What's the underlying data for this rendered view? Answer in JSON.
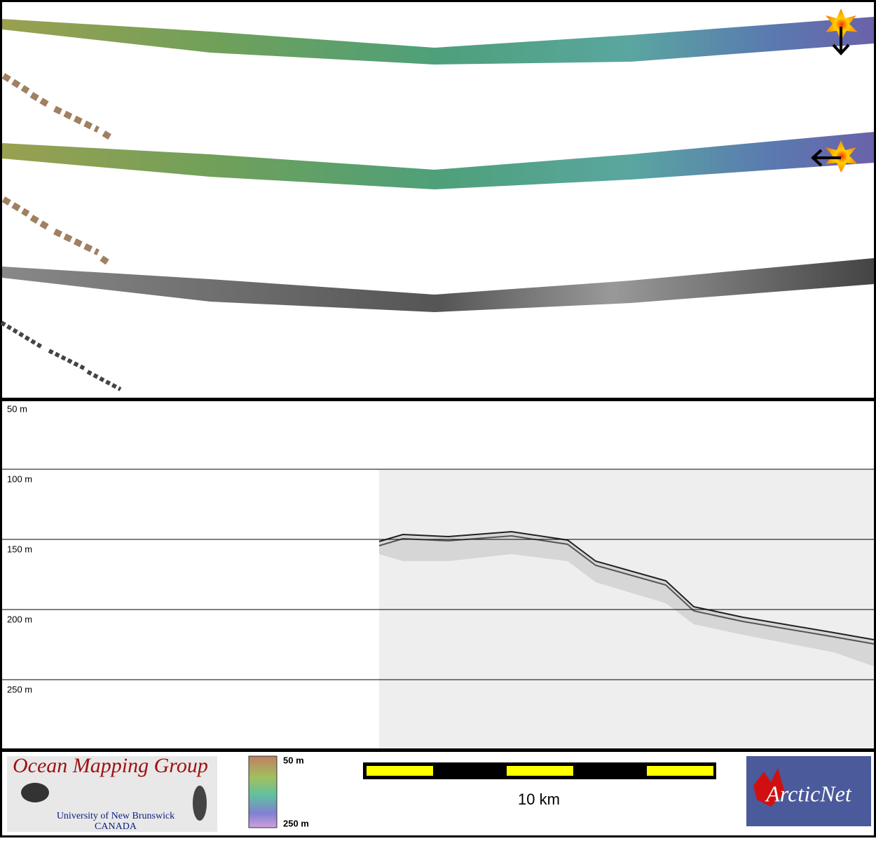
{
  "profile": {
    "depth_labels": [
      "50 m",
      "100 m",
      "150 m",
      "200 m",
      "250 m"
    ]
  },
  "legend": {
    "organization": "Ocean Mapping Group",
    "university": "University of New Brunswick",
    "country": "CANADA",
    "colorbar_top": "50 m",
    "colorbar_bottom": "250 m",
    "scale_label": "10 km",
    "partner": "ArcticNet"
  }
}
